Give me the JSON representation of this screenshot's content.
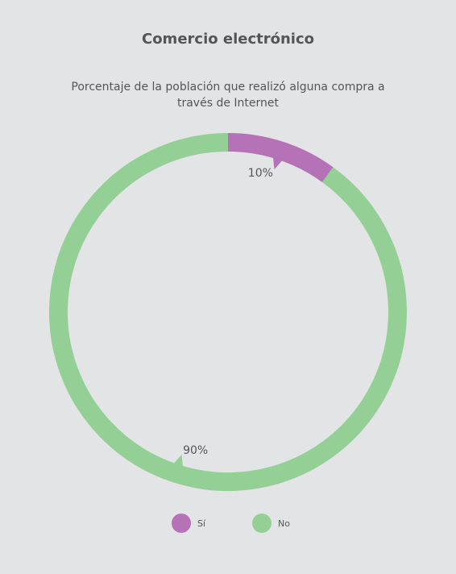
{
  "header": {
    "title": "Comercio electrónico",
    "subtitle": "Porcentaje de la población que realizó alguna compra a través de Internet"
  },
  "chart_data": {
    "type": "pie",
    "variant": "donut",
    "title": "Comercio electrónico",
    "subtitle": "Porcentaje de la población que realizó alguna compra a través de Internet",
    "categories": [
      "Sí",
      "No"
    ],
    "values": [
      10,
      90
    ],
    "data_labels": [
      "10%",
      "90%"
    ],
    "colors": [
      "#b572b6",
      "#94d096"
    ],
    "start_angle_deg": 90,
    "direction": "clockwise",
    "legend_position": "bottom"
  },
  "legend": {
    "items": [
      {
        "label": "Sí",
        "color": "#b572b6"
      },
      {
        "label": "No",
        "color": "#94d096"
      }
    ]
  }
}
